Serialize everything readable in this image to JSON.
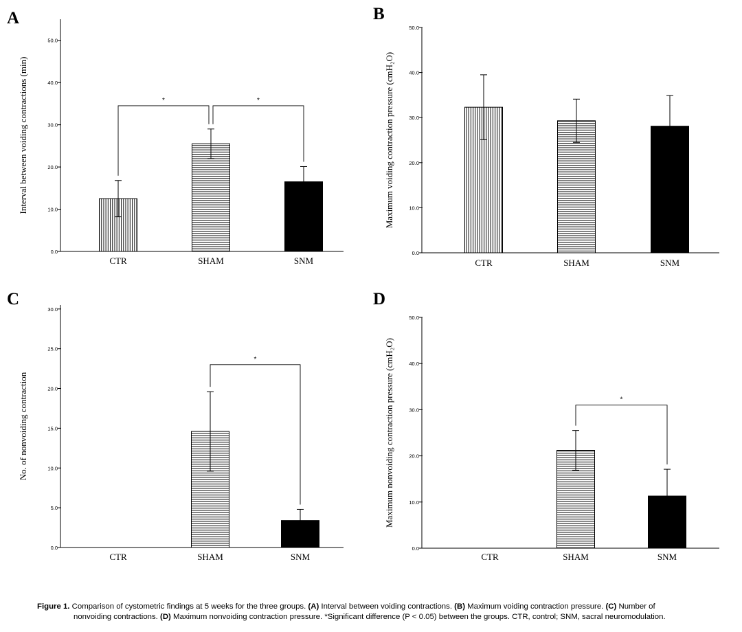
{
  "chart_data": [
    {
      "panel_label": "A",
      "type": "bar",
      "categories": [
        "CTR",
        "SHAM",
        "SNM"
      ],
      "values": [
        12.5,
        25.5,
        16.5
      ],
      "error": [
        4.3,
        3.5,
        3.6
      ],
      "ylabel": "Interval between voiding contractions (min)",
      "ylim": [
        0,
        55
      ],
      "yticks": [
        "0.0",
        "10.0",
        "20.0",
        "30.0",
        "40.0",
        "50.0"
      ],
      "significance": [
        {
          "from": 0,
          "to": 1,
          "height": 34.5,
          "label": "*"
        },
        {
          "from": 1,
          "to": 2,
          "height": 34.5,
          "label": "*"
        }
      ]
    },
    {
      "panel_label": "B",
      "type": "bar",
      "categories": [
        "CTR",
        "SHAM",
        "SNM"
      ],
      "values": [
        32.3,
        29.3,
        28.1
      ],
      "error": [
        7.2,
        4.8,
        6.8
      ],
      "ylabel": "Maximum voiding contraction pressure (cmH₂O)",
      "ylim": [
        0,
        50
      ],
      "yticks": [
        "0.0",
        "10.0",
        "20.0",
        "30.0",
        "40.0",
        "50.0"
      ],
      "significance": []
    },
    {
      "panel_label": "C",
      "type": "bar",
      "categories": [
        "CTR",
        "SHAM",
        "SNM"
      ],
      "values": [
        0,
        14.6,
        3.4
      ],
      "error": [
        0,
        5.0,
        1.4
      ],
      "ylabel": "No. of nonvoiding contraction",
      "ylim": [
        0,
        30.5
      ],
      "yticks": [
        "0.0",
        "5.0",
        "10.0",
        "15.0",
        "20.0",
        "25.0",
        "30.0"
      ],
      "significance": [
        {
          "from": 1,
          "to": 2,
          "height": 23.0,
          "label": "*"
        }
      ]
    },
    {
      "panel_label": "D",
      "type": "bar",
      "categories": [
        "CTR",
        "SHAM",
        "SNM"
      ],
      "values": [
        0,
        21.2,
        11.3
      ],
      "error": [
        0,
        4.3,
        5.8
      ],
      "ylabel": "Maximum nonvoiding contraction pressure (cmH₂O)",
      "ylim": [
        0,
        50
      ],
      "yticks": [
        "0.0",
        "10.0",
        "20.0",
        "30.0",
        "40.0",
        "50.0"
      ],
      "significance": [
        {
          "from": 1,
          "to": 2,
          "height": 31.0,
          "label": "*"
        }
      ]
    }
  ],
  "colors": {
    "axis": "#000000",
    "CTR": "vertical-stripes",
    "SHAM": "horizontal-stripes",
    "SNM": "#000000"
  },
  "caption": {
    "label": "Figure 1.",
    "intro": " Comparison of cystometric findings at 5 weeks for the three groups.",
    "a_tag": " (A)",
    "a_text": " Interval between voiding contractions.",
    "b_tag": " (B)",
    "b_text": " Maximum voiding contraction pressure.",
    "c_tag": " (C)",
    "c_text": " Number of",
    "line2_start": "nonvoiding contractions.",
    "d_tag": " (D)",
    "d_text": " Maximum nonvoiding contraction pressure. *Significant difference (P < 0.05) between the groups. CTR, control; SNM, sacral neuromodulation."
  }
}
